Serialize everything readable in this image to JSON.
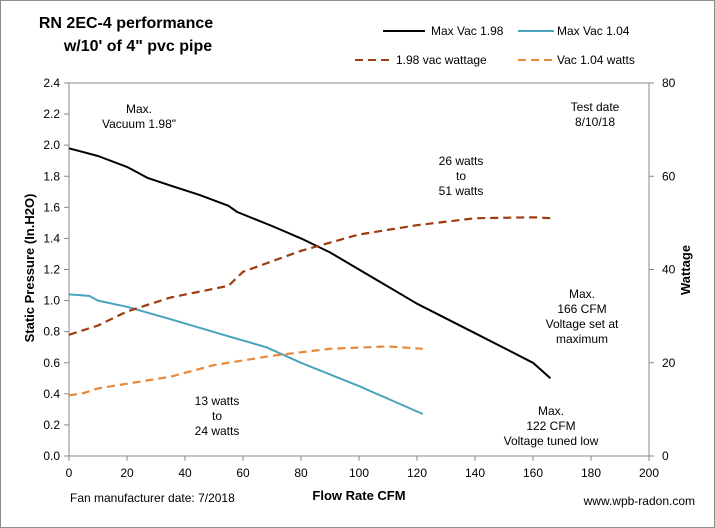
{
  "chart_data": {
    "type": "line",
    "title_lines": [
      "RN 2EC-4 performance",
      "w/10' of 4\" pvc pipe"
    ],
    "xlabel": "Flow Rate  CFM",
    "ylabel": "Static Pressure (In.H2O)",
    "y2label": "Wattage",
    "xlim": [
      0,
      200
    ],
    "ylim": [
      0,
      2.4
    ],
    "y2lim": [
      0,
      80
    ],
    "x_ticks": [
      0,
      20,
      40,
      60,
      80,
      100,
      120,
      140,
      160,
      180,
      200
    ],
    "y_ticks": [
      "0.0",
      "0.2",
      "0.4",
      "0.6",
      "0.8",
      "1.0",
      "1.2",
      "1.4",
      "1.6",
      "1.8",
      "2.0",
      "2.2",
      "2.4"
    ],
    "y2_ticks": [
      0,
      20,
      40,
      60,
      80
    ],
    "grid": false,
    "legend_position": "top",
    "series": [
      {
        "name": "Max Vac 1.98",
        "axis": "left",
        "color": "#000000",
        "style": "solid",
        "x": [
          0,
          10,
          20,
          27,
          35,
          45,
          55,
          58,
          70,
          80,
          90,
          100,
          120,
          140,
          160,
          166
        ],
        "y": [
          1.98,
          1.93,
          1.86,
          1.79,
          1.74,
          1.68,
          1.61,
          1.57,
          1.48,
          1.4,
          1.31,
          1.2,
          0.98,
          0.79,
          0.6,
          0.5
        ]
      },
      {
        "name": "Max Vac 1.04",
        "axis": "left",
        "color": "#4aa3be",
        "style": "solid",
        "x": [
          0,
          7,
          10,
          20,
          35,
          55,
          68,
          80,
          100,
          122
        ],
        "y": [
          1.04,
          1.03,
          1.0,
          0.96,
          0.88,
          0.77,
          0.7,
          0.6,
          0.45,
          0.27
        ]
      },
      {
        "name": "1.98 vac wattage",
        "axis": "right",
        "color": "#9e3b0f",
        "style": "dashed",
        "x": [
          0,
          10,
          20,
          35,
          55,
          60,
          80,
          100,
          120,
          140,
          160,
          166
        ],
        "y": [
          26,
          28,
          31,
          34,
          36.5,
          39.5,
          44,
          47.5,
          49.5,
          51,
          51.2,
          51
        ]
      },
      {
        "name": "Vac 1.04 watts",
        "axis": "right",
        "color": "#e6893a",
        "style": "dashed",
        "x": [
          0,
          5,
          10,
          20,
          35,
          50,
          70,
          90,
          110,
          122
        ],
        "y": [
          13,
          13.5,
          14.5,
          15.5,
          17,
          19.5,
          21.5,
          23,
          23.5,
          23
        ]
      }
    ],
    "annotations": [
      {
        "lines": [
          "Max.",
          "Vacuum 1.98\""
        ]
      },
      {
        "lines": [
          "Test date",
          "8/10/18"
        ]
      },
      {
        "lines": [
          "26 watts",
          "to",
          "51 watts"
        ]
      },
      {
        "lines": [
          "Max.",
          "166 CFM",
          "Voltage set at",
          "maximum"
        ]
      },
      {
        "lines": [
          "13 watts",
          "to",
          "24 watts"
        ]
      },
      {
        "lines": [
          "Max.",
          "122 CFM",
          "Voltage tuned low"
        ]
      }
    ],
    "footer_left": "Fan manufacturer date: 7/2018",
    "footer_right": "www.wpb-radon.com"
  }
}
